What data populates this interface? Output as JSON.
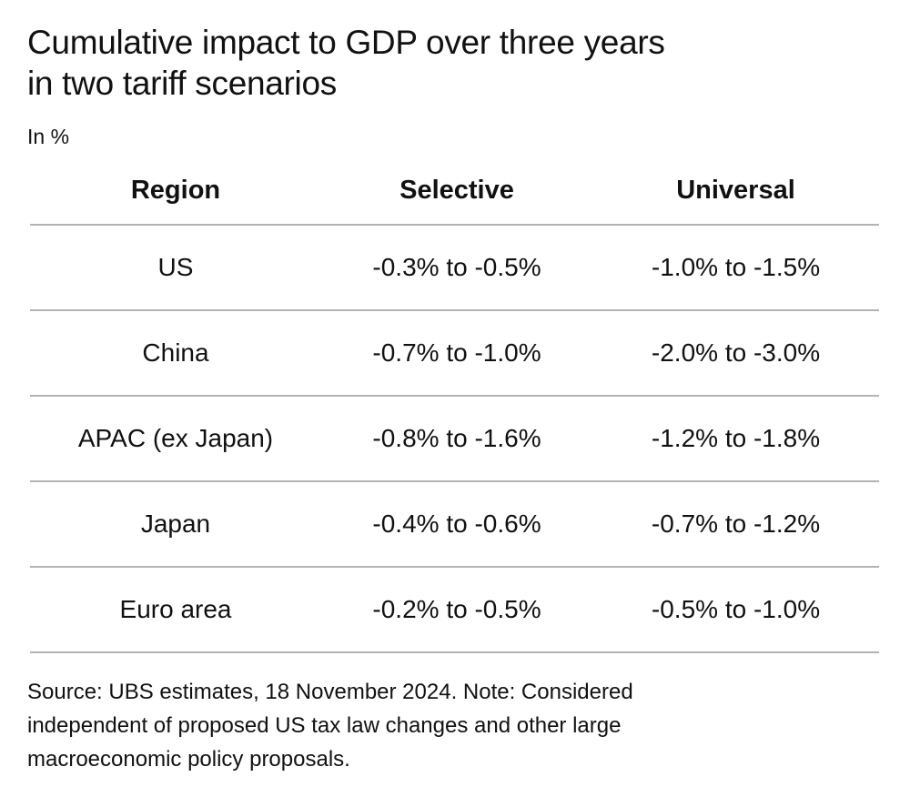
{
  "chart_data": {
    "type": "table",
    "title": "Cumulative impact to GDP over three years in two tariff scenarios",
    "subtitle": "In %",
    "columns": [
      "Region",
      "Selective",
      "Universal"
    ],
    "rows": [
      {
        "region": "US",
        "selective": "-0.3% to -0.5%",
        "universal": "-1.0% to -1.5%"
      },
      {
        "region": "China",
        "selective": "-0.7% to -1.0%",
        "universal": "-2.0% to -3.0%"
      },
      {
        "region": "APAC (ex Japan)",
        "selective": "-0.8% to -1.6%",
        "universal": "-1.2% to -1.8%"
      },
      {
        "region": "Japan",
        "selective": "-0.4% to -0.6%",
        "universal": "-0.7% to -1.2%"
      },
      {
        "region": "Euro area",
        "selective": "-0.2% to -0.5%",
        "universal": "-0.5% to -1.0%"
      }
    ],
    "source": "Source: UBS estimates, 18 November 2024. Note: Considered independent of proposed US tax law changes and other large macroeconomic policy proposals."
  }
}
